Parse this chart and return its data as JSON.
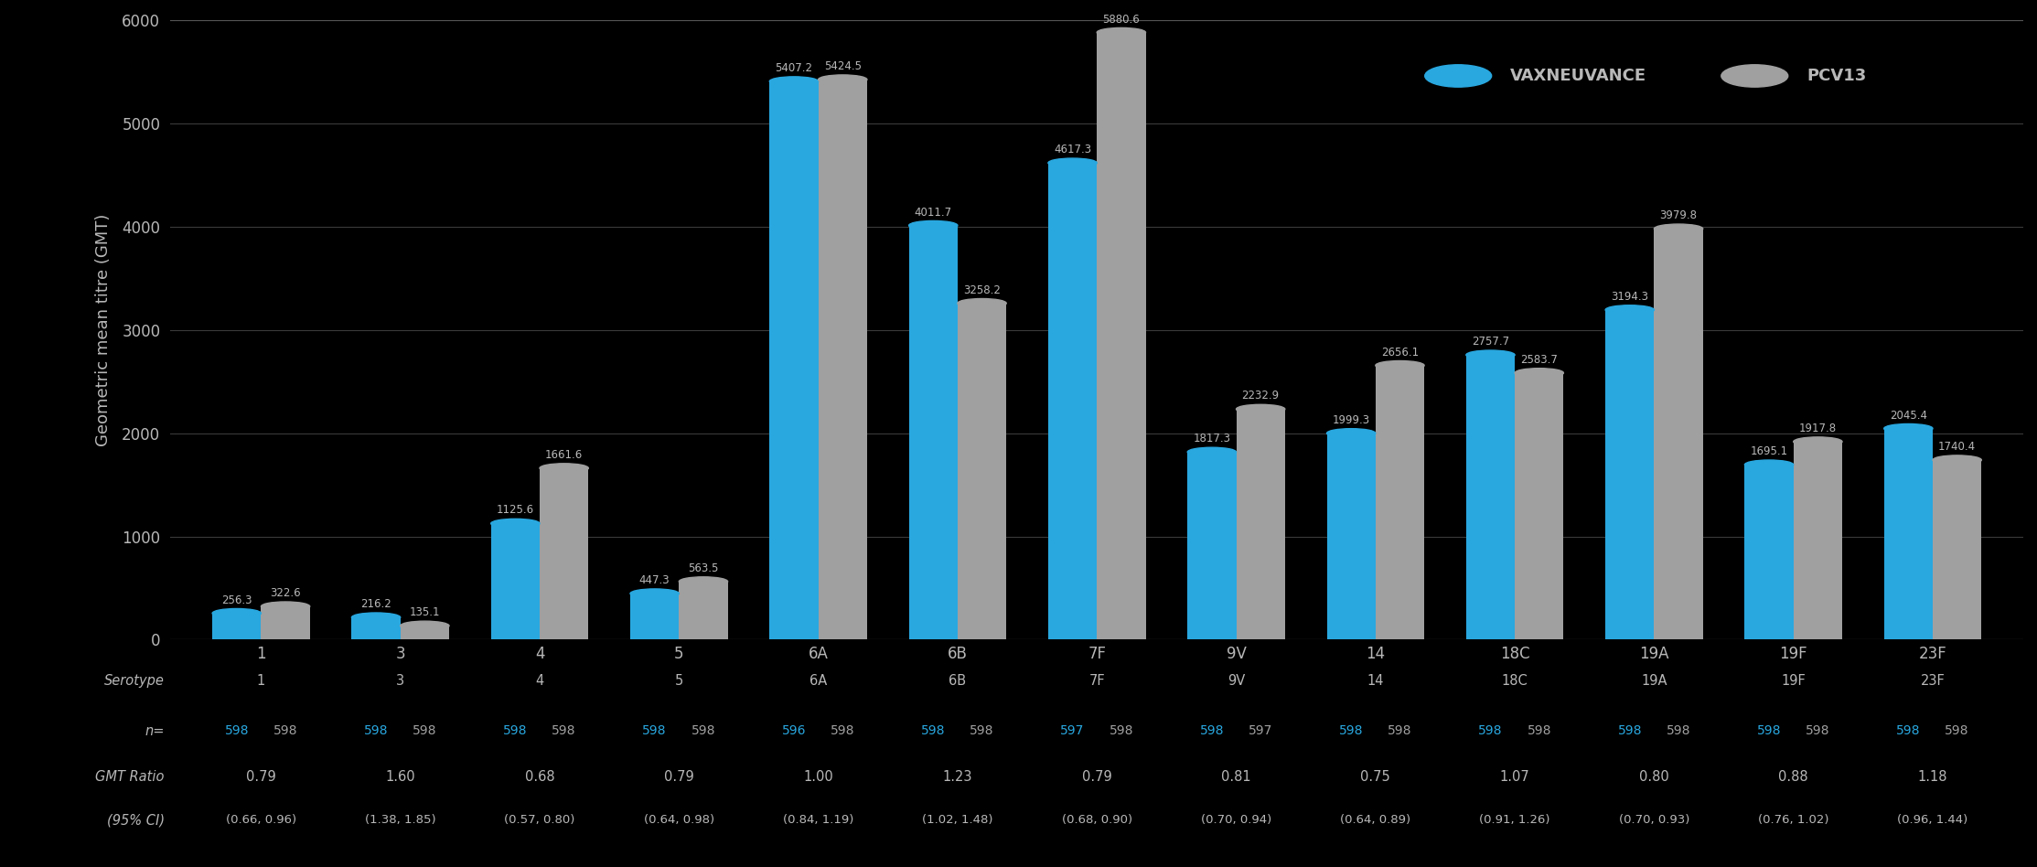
{
  "serotypes": [
    "1",
    "3",
    "4",
    "5",
    "6A",
    "6B",
    "7F",
    "9V",
    "14",
    "18C",
    "19A",
    "19F",
    "23F"
  ],
  "vaxneuvance": [
    256.3,
    216.2,
    1125.6,
    447.3,
    5407.2,
    4011.7,
    4617.3,
    1817.3,
    1999.3,
    2757.7,
    3194.3,
    1695.1,
    2045.4
  ],
  "pcv13": [
    322.6,
    135.1,
    1661.6,
    563.5,
    5424.5,
    3258.2,
    5880.6,
    2232.9,
    2656.1,
    2583.7,
    3979.8,
    1917.8,
    1740.4
  ],
  "n_vaxneuvance": [
    "598",
    "598",
    "598",
    "598",
    "596",
    "598",
    "597",
    "598",
    "598",
    "598",
    "598",
    "598",
    "598"
  ],
  "n_pcv13": [
    "598",
    "598",
    "598",
    "598",
    "598",
    "598",
    "598",
    "597",
    "598",
    "598",
    "598",
    "598",
    "598"
  ],
  "gmt_ratio": [
    "0.79",
    "1.60",
    "0.68",
    "0.79",
    "1.00",
    "1.23",
    "0.79",
    "0.81",
    "0.75",
    "1.07",
    "0.80",
    "0.88",
    "1.18"
  ],
  "ci_95": [
    "(0.66, 0.96)",
    "(1.38, 1.85)",
    "(0.57, 0.80)",
    "(0.64, 0.98)",
    "(0.84, 1.19)",
    "(1.02, 1.48)",
    "(0.68, 0.90)",
    "(0.70, 0.94)",
    "(0.64, 0.89)",
    "(0.91, 1.26)",
    "(0.70, 0.93)",
    "(0.76, 1.02)",
    "(0.96, 1.44)"
  ],
  "vaxneuvance_color": "#29a8e0",
  "pcv13_color": "#a0a0a0",
  "background_color": "#000000",
  "text_color": "#b8b8b8",
  "ylabel": "Geometric mean titre (GMT)",
  "ylim": [
    0,
    6000
  ],
  "yticks": [
    0,
    1000,
    2000,
    3000,
    4000,
    5000,
    6000
  ],
  "legend_vaxneuvance": "VAXNEUVANCE",
  "legend_pcv13": "PCV13",
  "bar_width": 0.35,
  "axis_fontsize": 13,
  "tick_fontsize": 12,
  "annotation_fontsize": 8.5,
  "table_fontsize": 10.5
}
